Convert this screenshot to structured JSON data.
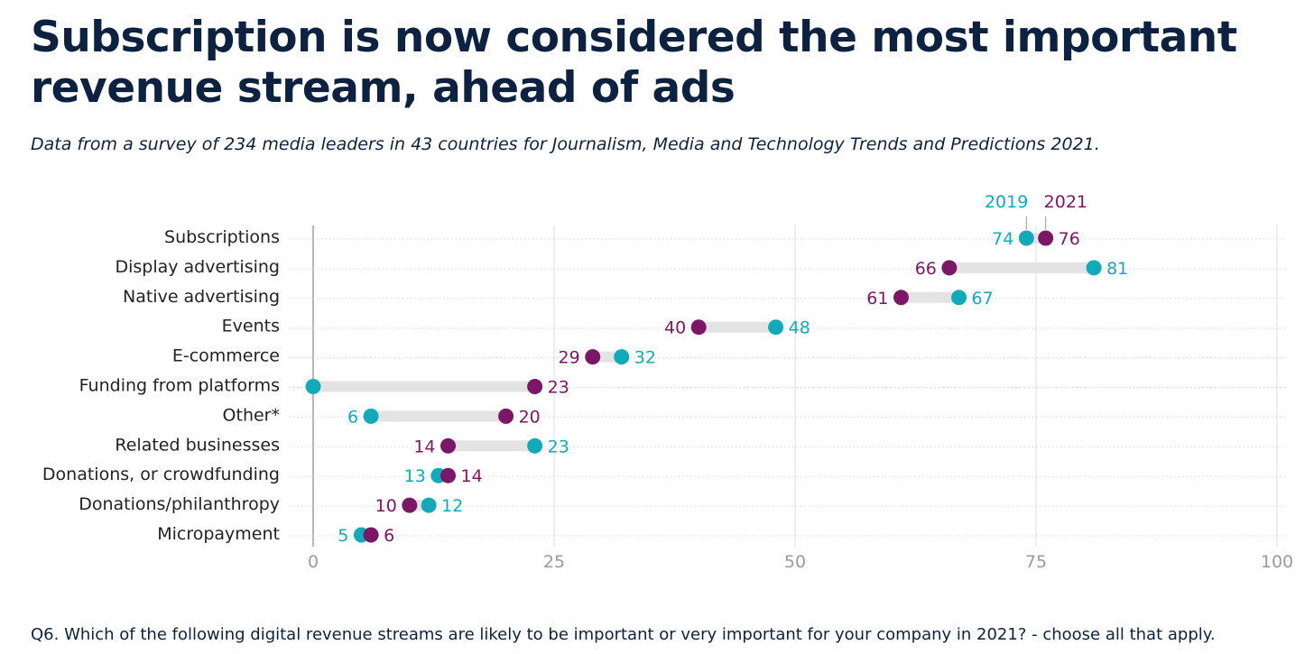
{
  "header": {
    "title": "Subscription is now considered the most important revenue stream, ahead of ads",
    "subtitle": "Data from a survey of 234 media leaders in 43 countries for Journalism, Media and Technology Trends and Predictions 2021."
  },
  "footer": {
    "note": "Q6. Which of the following digital revenue streams are likely to be important or very important for your company in 2021? - choose all that apply."
  },
  "colors": {
    "series_2019": "#12aab9",
    "series_2021": "#7b1766",
    "connector": "#e3e3e3",
    "grid": "#dddddd",
    "axis": "#9a9a9a"
  },
  "chart_data": {
    "type": "dumbbell",
    "title": "Subscription is now considered the most important revenue stream, ahead of ads",
    "xlim": [
      0,
      100
    ],
    "xticks": [
      0,
      25,
      50,
      75,
      100
    ],
    "tick_labels": [
      "0",
      "25",
      "50",
      "75",
      "100"
    ],
    "grid": true,
    "legend": "top-right",
    "categories": [
      "Subscriptions",
      "Display advertising",
      "Native advertising",
      "Events",
      "E-commerce",
      "Funding from platforms",
      "Other*",
      "Related businesses",
      "Donations, or crowdfunding",
      "Donations/philanthropy",
      "Micropayment"
    ],
    "series": [
      {
        "name": "2019",
        "values": [
          74,
          81,
          67,
          48,
          32,
          0,
          6,
          23,
          13,
          12,
          5
        ],
        "labels": [
          "74",
          "81",
          "67",
          "48",
          "32",
          "",
          "6",
          "23",
          "13",
          "12",
          "5"
        ]
      },
      {
        "name": "2021",
        "values": [
          76,
          66,
          61,
          40,
          29,
          23,
          20,
          14,
          14,
          10,
          6
        ],
        "labels": [
          "76",
          "66",
          "61",
          "40",
          "29",
          "23",
          "20",
          "14",
          "14",
          "10",
          "6"
        ]
      }
    ]
  }
}
